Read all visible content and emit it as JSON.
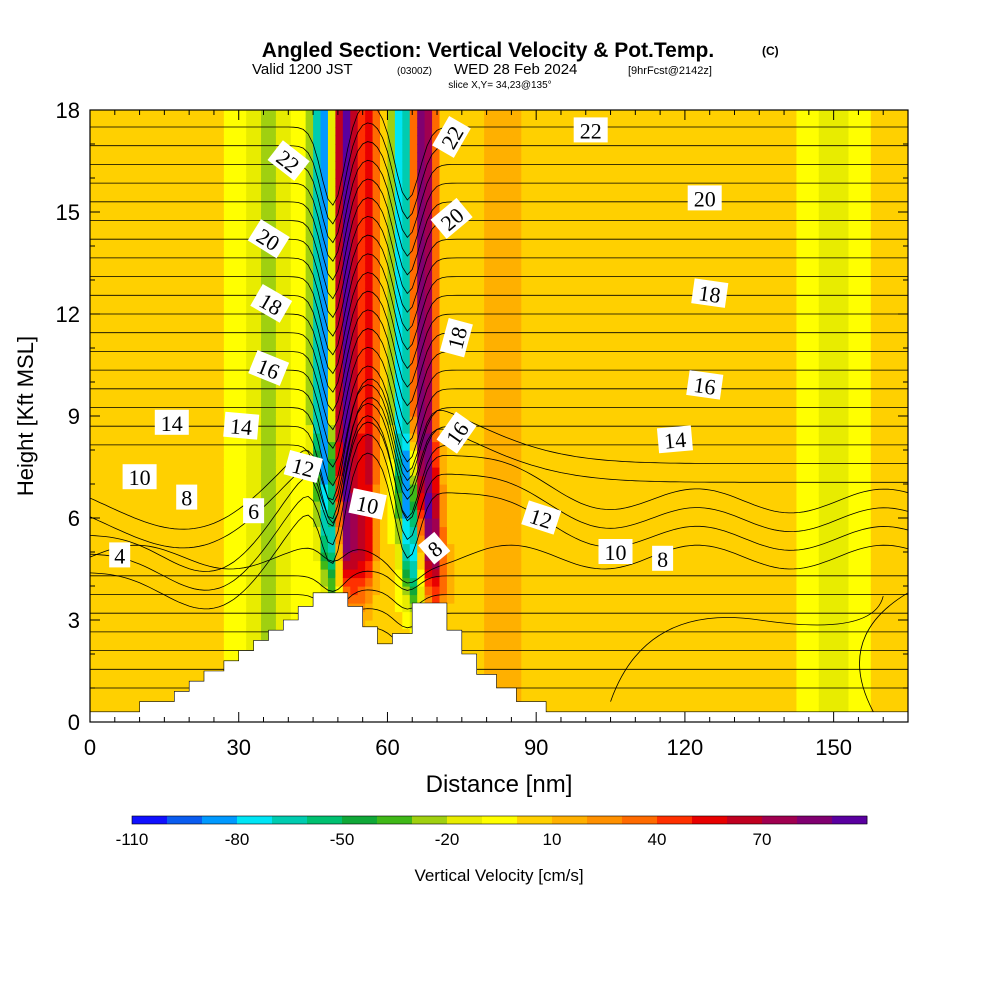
{
  "header": {
    "title": "Angled Section: Vertical Velocity & Pot.Temp.",
    "title_tag": "(C)",
    "valid_prefix": "Valid 1200 JST",
    "valid_utc": "(0300Z)",
    "valid_date": "WED 28 Feb 2024",
    "forecast_tag": "[9hrFcst@2142z]",
    "slice": "slice X,Y= 34,23@135°"
  },
  "chart_data": {
    "type": "heatmap",
    "xlabel": "Distance [nm]",
    "ylabel": "Height [Kft MSL]",
    "xlim": [
      0,
      165
    ],
    "ylim": [
      0,
      18
    ],
    "xticks": [
      0,
      30,
      60,
      90,
      120,
      150
    ],
    "yticks": [
      0,
      3,
      6,
      9,
      12,
      15,
      18
    ],
    "colorbar": {
      "label": "Vertical Velocity [cm/s]",
      "tick_labels": [
        -110,
        -80,
        -50,
        -20,
        10,
        40,
        70
      ],
      "min": -110,
      "step": 10,
      "colors": [
        "#1010ff",
        "#0a5cf0",
        "#0099ff",
        "#00e5f5",
        "#00ccb0",
        "#00c070",
        "#10a838",
        "#40b818",
        "#a0d010",
        "#e8ec00",
        "#ffff00",
        "#ffd000",
        "#ffb000",
        "#ff9000",
        "#ff6a00",
        "#ff3000",
        "#e80000",
        "#c00020",
        "#a00050",
        "#800070",
        "#5a00a0"
      ]
    },
    "terrain_profile": [
      [
        0,
        0.3
      ],
      [
        10,
        0.3
      ],
      [
        10,
        0.6
      ],
      [
        17,
        0.6
      ],
      [
        17,
        0.9
      ],
      [
        20,
        0.9
      ],
      [
        20,
        1.2
      ],
      [
        23,
        1.2
      ],
      [
        23,
        1.5
      ],
      [
        27,
        1.5
      ],
      [
        27,
        1.8
      ],
      [
        30,
        1.8
      ],
      [
        30,
        2.1
      ],
      [
        33,
        2.1
      ],
      [
        33,
        2.4
      ],
      [
        36,
        2.4
      ],
      [
        36,
        2.7
      ],
      [
        39,
        2.7
      ],
      [
        39,
        3.0
      ],
      [
        42,
        3.0
      ],
      [
        42,
        3.4
      ],
      [
        45,
        3.4
      ],
      [
        45,
        3.8
      ],
      [
        52,
        3.8
      ],
      [
        52,
        3.4
      ],
      [
        55,
        3.4
      ],
      [
        55,
        2.8
      ],
      [
        58,
        2.8
      ],
      [
        58,
        2.3
      ],
      [
        61,
        2.3
      ],
      [
        61,
        2.6
      ],
      [
        65,
        2.6
      ],
      [
        65,
        3.5
      ],
      [
        72,
        3.5
      ],
      [
        72,
        2.7
      ],
      [
        75,
        2.7
      ],
      [
        75,
        2.0
      ],
      [
        78,
        2.0
      ],
      [
        78,
        1.4
      ],
      [
        82,
        1.4
      ],
      [
        82,
        1.0
      ],
      [
        86,
        1.0
      ],
      [
        86,
        0.6
      ],
      [
        92,
        0.6
      ],
      [
        92,
        0.3
      ],
      [
        165,
        0.3
      ]
    ],
    "vertical_velocity_features": [
      {
        "x_center": 47,
        "slope_per_kft": 0.45,
        "width": 2.2,
        "amplitude": -95
      },
      {
        "x_center": 51.5,
        "slope_per_kft": 0.0,
        "width": 2.6,
        "amplitude": 95
      },
      {
        "x_center": 56.5,
        "slope_per_kft": -0.2,
        "width": 2.0,
        "amplitude": 55
      },
      {
        "x_center": 63,
        "slope_per_kft": 0.45,
        "width": 2.0,
        "amplitude": -95
      },
      {
        "x_center": 67,
        "slope_per_kft": 0.45,
        "width": 2.6,
        "amplitude": 90
      },
      {
        "x_center": 36,
        "slope_per_kft": 0.0,
        "width": 6.0,
        "amplitude": -25
      },
      {
        "x_center": 83,
        "slope_per_kft": 0.0,
        "width": 5.0,
        "amplitude": 14
      },
      {
        "x_center": 125,
        "slope_per_kft": 0.0,
        "width": 8.0,
        "amplitude": 8
      },
      {
        "x_center": 150,
        "slope_per_kft": 0.0,
        "width": 5.0,
        "amplitude": -15
      }
    ],
    "theta_contour_labels": [
      {
        "text": "22",
        "x": 40,
        "y": 16.5,
        "rot": 38
      },
      {
        "text": "20",
        "x": 36,
        "y": 14.2,
        "rot": 32
      },
      {
        "text": "18",
        "x": 36.5,
        "y": 12.3,
        "rot": 30
      },
      {
        "text": "16",
        "x": 36,
        "y": 10.4,
        "rot": 22
      },
      {
        "text": "14",
        "x": 16.5,
        "y": 8.8,
        "rot": 0
      },
      {
        "text": "14",
        "x": 30.5,
        "y": 8.7,
        "rot": 5
      },
      {
        "text": "12",
        "x": 43,
        "y": 7.5,
        "rot": 15
      },
      {
        "text": "10",
        "x": 10,
        "y": 7.2,
        "rot": 0
      },
      {
        "text": "8",
        "x": 19.5,
        "y": 6.6,
        "rot": 0
      },
      {
        "text": "6",
        "x": 33,
        "y": 6.2,
        "rot": 0
      },
      {
        "text": "10",
        "x": 56,
        "y": 6.4,
        "rot": 12
      },
      {
        "text": "4",
        "x": 6,
        "y": 4.9,
        "rot": 0
      },
      {
        "text": "22",
        "x": 73,
        "y": 17.2,
        "rot": -60
      },
      {
        "text": "20",
        "x": 73,
        "y": 14.8,
        "rot": -40
      },
      {
        "text": "18",
        "x": 74,
        "y": 11.3,
        "rot": -75
      },
      {
        "text": "16",
        "x": 74,
        "y": 8.5,
        "rot": -55
      },
      {
        "text": "8",
        "x": 69.5,
        "y": 5.1,
        "rot": -40
      },
      {
        "text": "12",
        "x": 91,
        "y": 6.0,
        "rot": 18
      },
      {
        "text": "10",
        "x": 106,
        "y": 5.0,
        "rot": 0
      },
      {
        "text": "8",
        "x": 115.5,
        "y": 4.8,
        "rot": 0
      },
      {
        "text": "14",
        "x": 118,
        "y": 8.3,
        "rot": -5
      },
      {
        "text": "16",
        "x": 124,
        "y": 9.9,
        "rot": 8
      },
      {
        "text": "18",
        "x": 125,
        "y": 12.6,
        "rot": 8
      },
      {
        "text": "20",
        "x": 124,
        "y": 15.4,
        "rot": 0
      },
      {
        "text": "22",
        "x": 101,
        "y": 17.4,
        "rot": 0
      }
    ]
  }
}
